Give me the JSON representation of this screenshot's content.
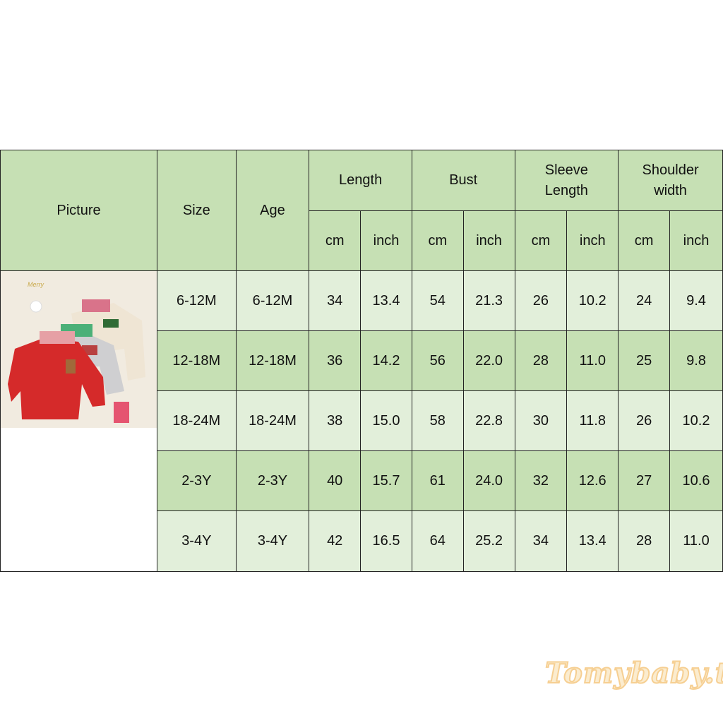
{
  "headers": {
    "picture": "Picture",
    "size": "Size",
    "age": "Age",
    "groups": [
      "Length",
      "Bust",
      "Sleeve Length",
      "Shoulder width"
    ],
    "units": [
      "cm",
      "inch"
    ]
  },
  "rows": [
    {
      "size": "6-12M",
      "age": "6-12M",
      "values": [
        "34",
        "13.4",
        "54",
        "21.3",
        "26",
        "10.2",
        "24",
        "9.4"
      ]
    },
    {
      "size": "12-18M",
      "age": "12-18M",
      "values": [
        "36",
        "14.2",
        "56",
        "22.0",
        "28",
        "11.0",
        "25",
        "9.8"
      ]
    },
    {
      "size": "18-24M",
      "age": "18-24M",
      "values": [
        "38",
        "15.0",
        "58",
        "22.8",
        "30",
        "11.8",
        "26",
        "10.2"
      ]
    },
    {
      "size": "2-3Y",
      "age": "2-3Y",
      "values": [
        "40",
        "15.7",
        "61",
        "24.0",
        "32",
        "12.6",
        "27",
        "10.6"
      ]
    },
    {
      "size": "3-4Y",
      "age": "3-4Y",
      "values": [
        "42",
        "16.5",
        "64",
        "25.2",
        "34",
        "13.4",
        "28",
        "11.0"
      ]
    }
  ],
  "colors": {
    "header": "#c6e0b4",
    "row_light": "#e2efda",
    "row_dark": "#c6e0b4"
  },
  "watermark": "Tomybaby.th"
}
